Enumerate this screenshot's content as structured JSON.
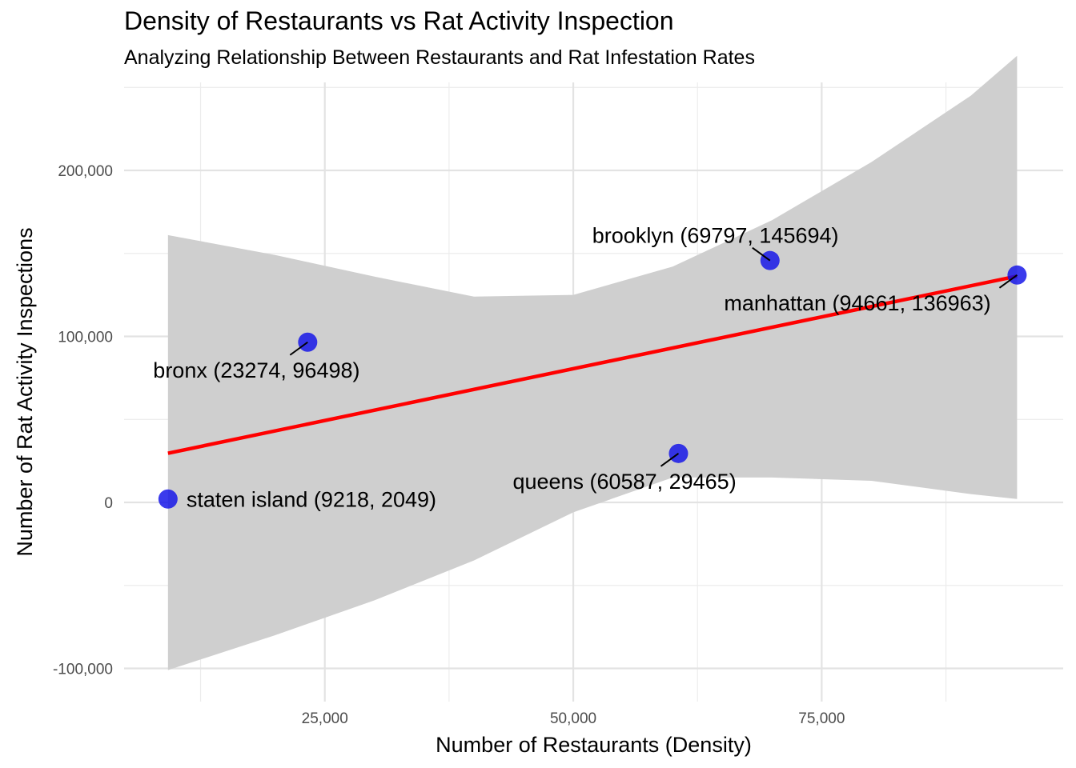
{
  "chart_data": {
    "type": "scatter",
    "title": "Density of Restaurants vs Rat Activity Inspection",
    "subtitle": "Analyzing Relationship Between Restaurants and Rat Infestation Rates",
    "xlabel": "Number of Restaurants (Density)",
    "ylabel": "Number of Rat Activity Inspections",
    "xlim": [
      4800,
      99300
    ],
    "ylim": [
      -120000,
      253000
    ],
    "x_ticks": [
      25000,
      50000,
      75000
    ],
    "x_tick_labels": [
      "25,000",
      "50,000",
      "75,000"
    ],
    "y_ticks": [
      -100000,
      0,
      100000,
      200000
    ],
    "y_tick_labels": [
      "-100,000",
      "0",
      "100,000",
      "200,000"
    ],
    "grid": true,
    "legend": "none",
    "point_color": "#1010e8",
    "trend_color": "#ff0000",
    "band_color": "#cfcfcf",
    "points": [
      {
        "label": "staten island (9218, 2049)",
        "x": 9218,
        "y": 2049
      },
      {
        "label": "bronx (23274, 96498)",
        "x": 23274,
        "y": 96498
      },
      {
        "label": "queens (60587, 29465)",
        "x": 60587,
        "y": 29465
      },
      {
        "label": "brooklyn (69797, 145694)",
        "x": 69797,
        "y": 145694
      },
      {
        "label": "manhattan (94661, 136963)",
        "x": 94661,
        "y": 136963
      }
    ],
    "trend_line": {
      "x": [
        9218,
        94661
      ],
      "y": [
        29600,
        136300
      ]
    },
    "confidence_band": {
      "x": [
        9218,
        20000,
        30000,
        40000,
        50000,
        60000,
        70000,
        80000,
        90000,
        94661
      ],
      "upper": [
        161000,
        149000,
        136000,
        124000,
        125000,
        142000,
        170000,
        205000,
        245000,
        269000
      ],
      "lower": [
        -101000,
        -80000,
        -59000,
        -35000,
        -6000,
        15000,
        15000,
        13000,
        5000,
        2000
      ]
    }
  }
}
